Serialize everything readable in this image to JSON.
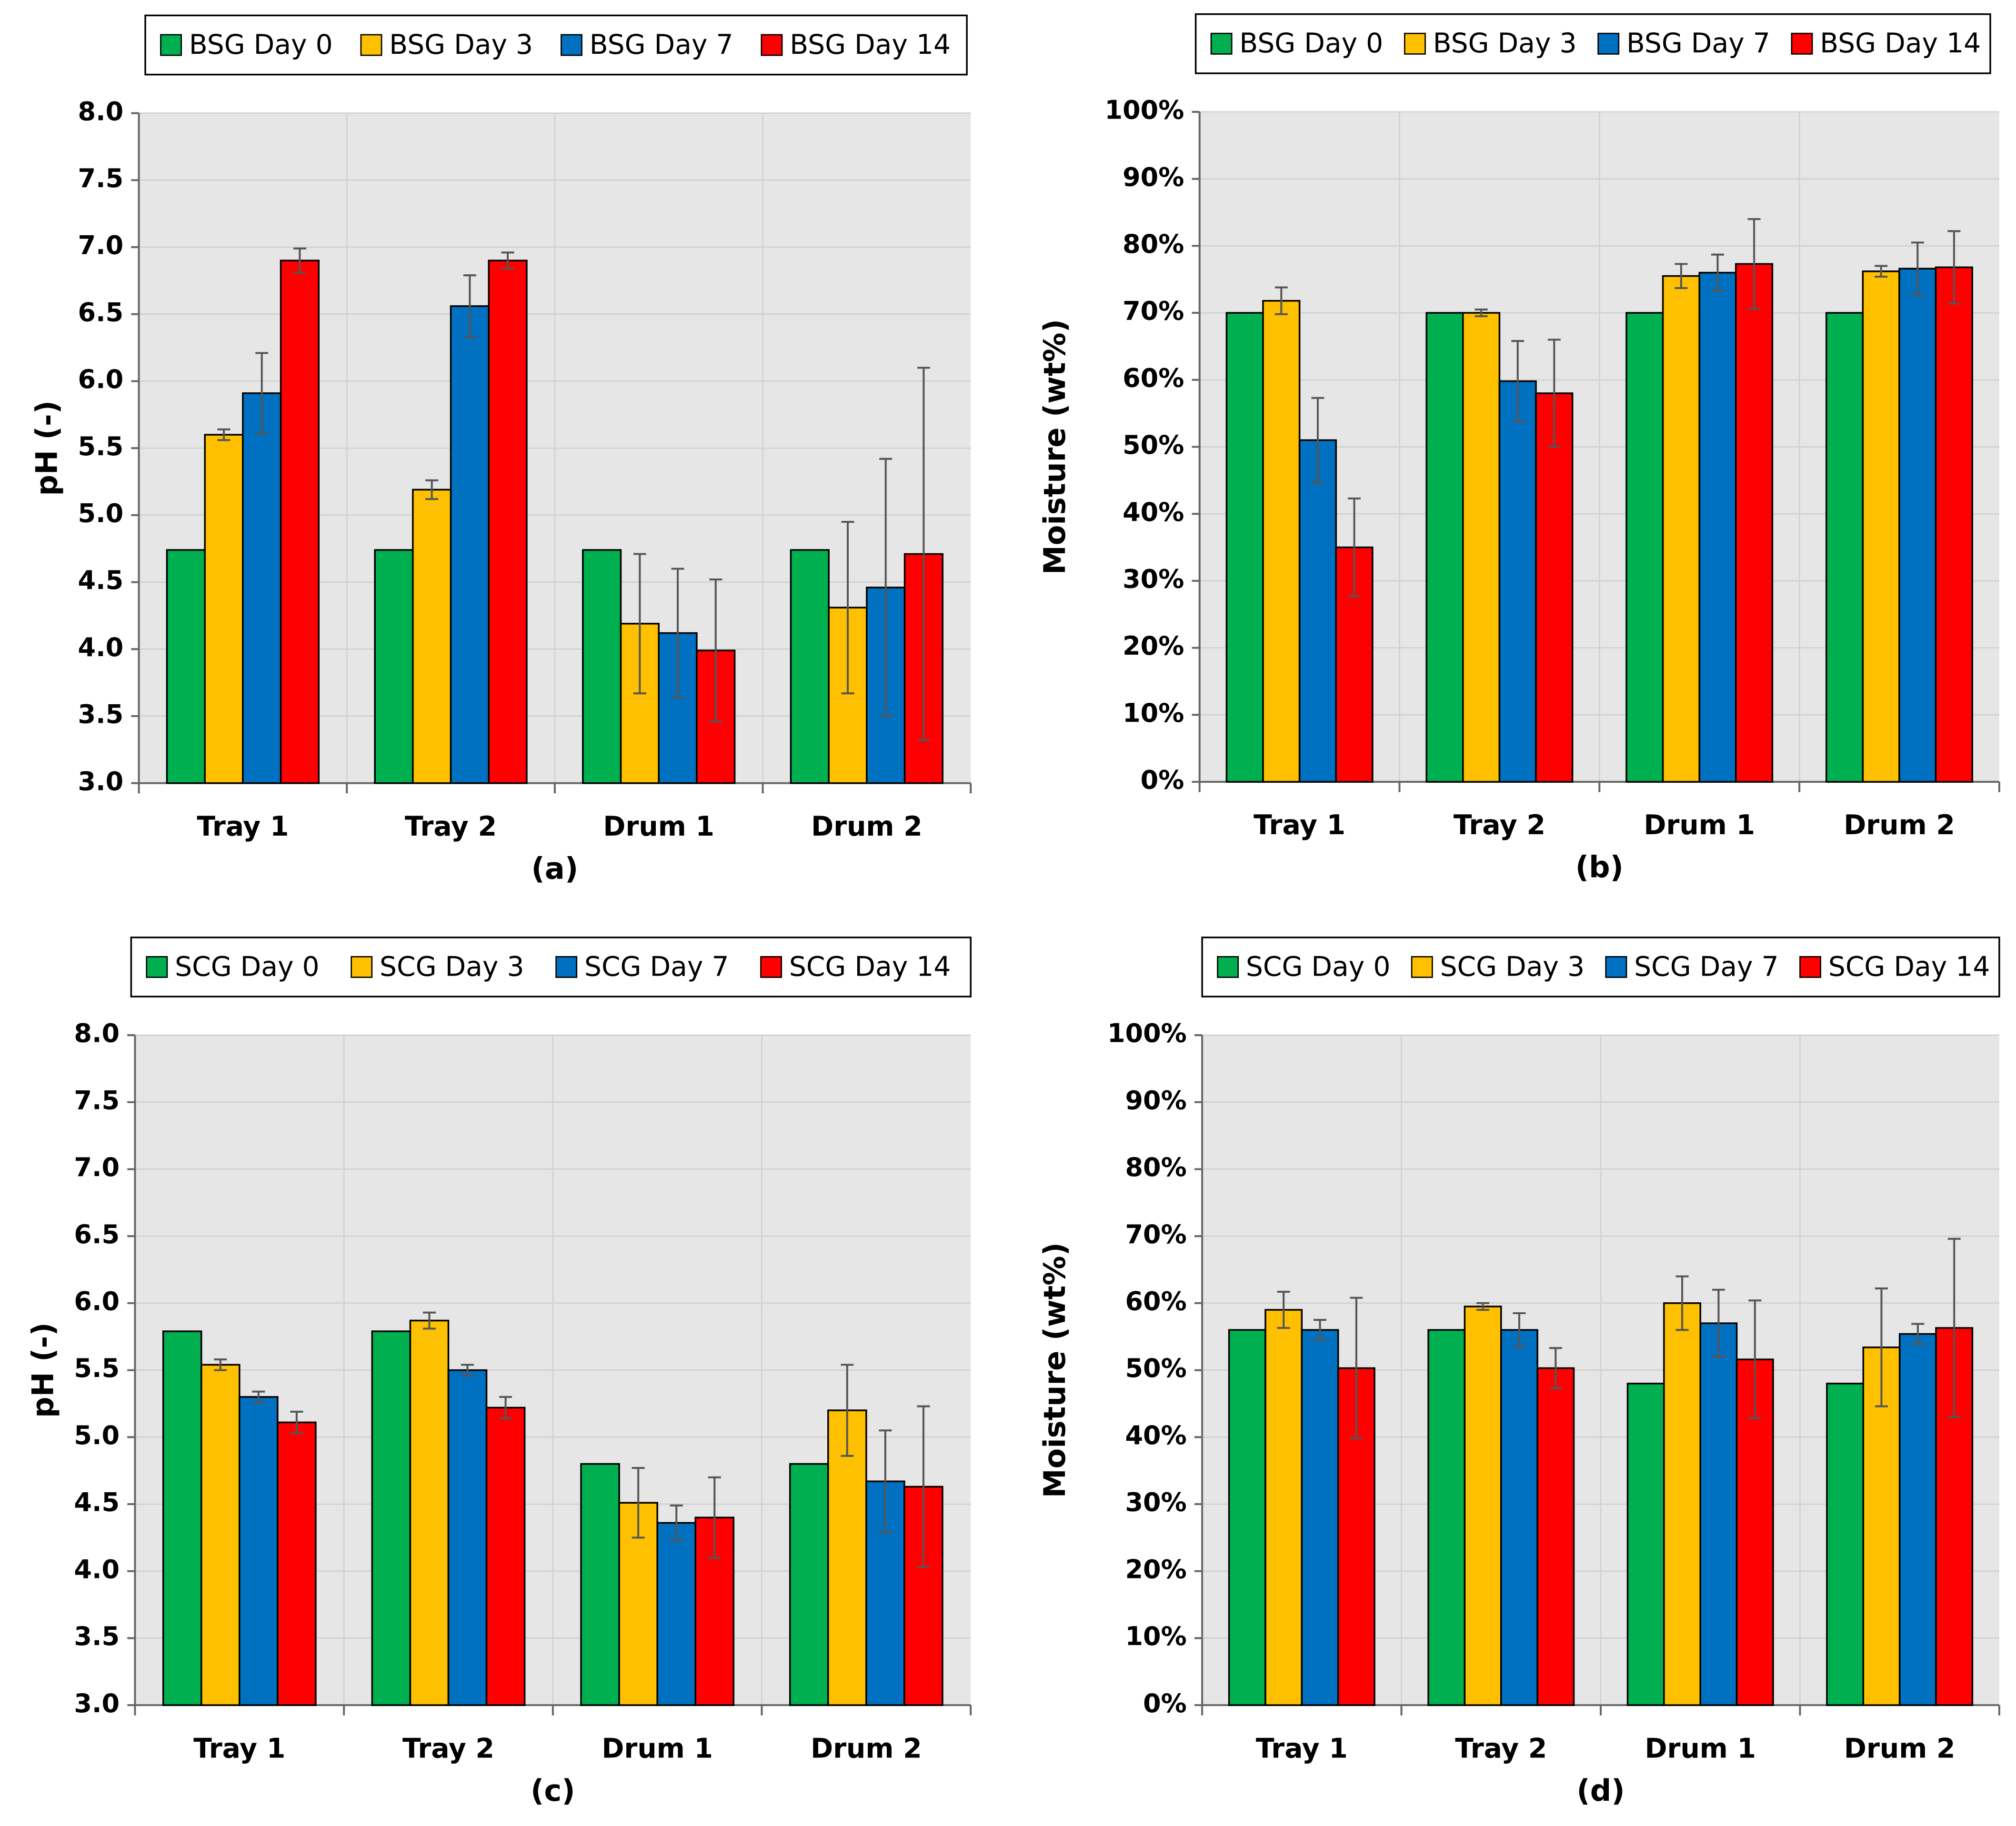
{
  "chart_data": [
    {
      "type": "bar",
      "subtitle": "(a)",
      "ylabel": "pH (-)",
      "categories": [
        "Tray 1",
        "Tray 2",
        "Drum 1",
        "Drum 2"
      ],
      "series": [
        {
          "name": "BSG Day 0",
          "color": "#00b050",
          "values": [
            4.74,
            4.74,
            4.74,
            4.74
          ],
          "errors": [
            null,
            null,
            null,
            null
          ]
        },
        {
          "name": "BSG Day 3",
          "color": "#ffc000",
          "values": [
            5.6,
            5.19,
            4.19,
            4.31
          ],
          "errors": [
            0.04,
            0.07,
            0.52,
            0.64
          ]
        },
        {
          "name": "BSG Day 7",
          "color": "#0070c0",
          "values": [
            5.91,
            6.56,
            4.12,
            4.46
          ],
          "errors": [
            0.3,
            0.23,
            0.48,
            0.96
          ]
        },
        {
          "name": "BSG Day 14",
          "color": "#ff0000",
          "values": [
            6.9,
            6.9,
            3.99,
            4.71
          ],
          "errors": [
            0.09,
            0.06,
            0.53,
            1.39
          ]
        }
      ],
      "ylim": [
        3,
        8
      ],
      "yticks": [
        {
          "value": 3,
          "label": "3.0"
        },
        {
          "value": 3.5,
          "label": "3.5"
        },
        {
          "value": 4,
          "label": "4.0"
        },
        {
          "value": 4.5,
          "label": "4.5"
        },
        {
          "value": 5,
          "label": "5.0"
        },
        {
          "value": 5.5,
          "label": "5.5"
        },
        {
          "value": 6,
          "label": "6.0"
        },
        {
          "value": 6.5,
          "label": "6.5"
        },
        {
          "value": 7,
          "label": "7.0"
        },
        {
          "value": 7.5,
          "label": "7.5"
        },
        {
          "value": 8,
          "label": "8.0"
        }
      ],
      "grid": true,
      "legend": "top"
    },
    {
      "type": "bar",
      "subtitle": "(b)",
      "ylabel": "Moisture (wt%)",
      "categories": [
        "Tray 1",
        "Tray 2",
        "Drum 1",
        "Drum 2"
      ],
      "series": [
        {
          "name": "BSG Day 0",
          "color": "#00b050",
          "values": [
            70,
            70,
            70,
            70
          ],
          "errors": [
            null,
            null,
            null,
            null
          ]
        },
        {
          "name": "BSG Day 3",
          "color": "#ffc000",
          "values": [
            71.8,
            70,
            75.5,
            76.2
          ],
          "errors": [
            2,
            0.5,
            1.8,
            0.8
          ]
        },
        {
          "name": "BSG Day 7",
          "color": "#0070c0",
          "values": [
            51,
            59.8,
            76,
            76.6
          ],
          "errors": [
            6.3,
            6,
            2.7,
            3.9
          ]
        },
        {
          "name": "BSG Day 14",
          "color": "#ff0000",
          "values": [
            35,
            58,
            77.3,
            76.8
          ],
          "errors": [
            7.3,
            8,
            6.7,
            5.4
          ]
        }
      ],
      "ylim": [
        0,
        100
      ],
      "yticks": [
        {
          "value": 0,
          "label": "0%"
        },
        {
          "value": 10,
          "label": "10%"
        },
        {
          "value": 20,
          "label": "20%"
        },
        {
          "value": 30,
          "label": "30%"
        },
        {
          "value": 40,
          "label": "40%"
        },
        {
          "value": 50,
          "label": "50%"
        },
        {
          "value": 60,
          "label": "60%"
        },
        {
          "value": 70,
          "label": "70%"
        },
        {
          "value": 80,
          "label": "80%"
        },
        {
          "value": 90,
          "label": "90%"
        },
        {
          "value": 100,
          "label": "100%"
        }
      ],
      "grid": true,
      "legend": "top"
    },
    {
      "type": "bar",
      "subtitle": "(c)",
      "ylabel": "pH (-)",
      "categories": [
        "Tray 1",
        "Tray 2",
        "Drum 1",
        "Drum 2"
      ],
      "series": [
        {
          "name": "SCG Day 0",
          "color": "#00b050",
          "values": [
            5.79,
            5.79,
            4.8,
            4.8
          ],
          "errors": [
            null,
            null,
            null,
            null
          ]
        },
        {
          "name": "SCG Day 3",
          "color": "#ffc000",
          "values": [
            5.54,
            5.87,
            4.51,
            5.2
          ],
          "errors": [
            0.04,
            0.06,
            0.26,
            0.34
          ]
        },
        {
          "name": "SCG Day 7",
          "color": "#0070c0",
          "values": [
            5.3,
            5.5,
            4.36,
            4.67
          ],
          "errors": [
            0.04,
            0.04,
            0.13,
            0.38
          ]
        },
        {
          "name": "SCG Day 14",
          "color": "#ff0000",
          "values": [
            5.11,
            5.22,
            4.4,
            4.63
          ],
          "errors": [
            0.08,
            0.08,
            0.3,
            0.6
          ]
        }
      ],
      "ylim": [
        3,
        8
      ],
      "yticks": [
        {
          "value": 3,
          "label": "3.0"
        },
        {
          "value": 3.5,
          "label": "3.5"
        },
        {
          "value": 4,
          "label": "4.0"
        },
        {
          "value": 4.5,
          "label": "4.5"
        },
        {
          "value": 5,
          "label": "5.0"
        },
        {
          "value": 5.5,
          "label": "5.5"
        },
        {
          "value": 6,
          "label": "6.0"
        },
        {
          "value": 6.5,
          "label": "6.5"
        },
        {
          "value": 7,
          "label": "7.0"
        },
        {
          "value": 7.5,
          "label": "7.5"
        },
        {
          "value": 8,
          "label": "8.0"
        }
      ],
      "grid": true,
      "legend": "top"
    },
    {
      "type": "bar",
      "subtitle": "(d)",
      "ylabel": "Moisture (wt%)",
      "categories": [
        "Tray 1",
        "Tray 2",
        "Drum 1",
        "Drum 2"
      ],
      "series": [
        {
          "name": "SCG Day 0",
          "color": "#00b050",
          "values": [
            56,
            56,
            48,
            48
          ],
          "errors": [
            null,
            null,
            null,
            null
          ]
        },
        {
          "name": "SCG Day 3",
          "color": "#ffc000",
          "values": [
            59,
            59.5,
            60,
            53.4
          ],
          "errors": [
            2.7,
            0.5,
            4,
            8.8
          ]
        },
        {
          "name": "SCG Day 7",
          "color": "#0070c0",
          "values": [
            56,
            56,
            57,
            55.4
          ],
          "errors": [
            1.5,
            2.5,
            5,
            1.5
          ]
        },
        {
          "name": "SCG Day 14",
          "color": "#ff0000",
          "values": [
            50.3,
            50.3,
            51.6,
            56.3
          ],
          "errors": [
            10.5,
            3,
            8.8,
            13.3
          ]
        }
      ],
      "ylim": [
        0,
        100
      ],
      "yticks": [
        {
          "value": 0,
          "label": "0%"
        },
        {
          "value": 10,
          "label": "10%"
        },
        {
          "value": 20,
          "label": "20%"
        },
        {
          "value": 30,
          "label": "30%"
        },
        {
          "value": 40,
          "label": "40%"
        },
        {
          "value": 50,
          "label": "50%"
        },
        {
          "value": 60,
          "label": "60%"
        },
        {
          "value": 70,
          "label": "70%"
        },
        {
          "value": 80,
          "label": "80%"
        },
        {
          "value": 90,
          "label": "90%"
        },
        {
          "value": 100,
          "label": "100%"
        }
      ],
      "grid": true,
      "legend": "top"
    }
  ]
}
